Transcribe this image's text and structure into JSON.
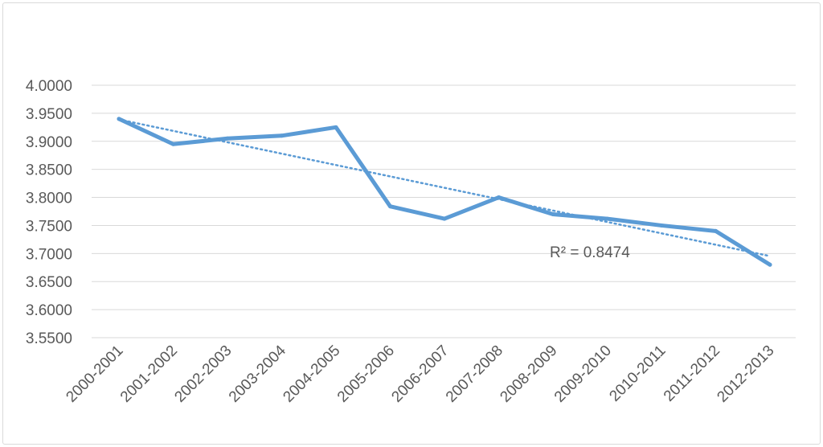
{
  "chart_data": {
    "type": "line",
    "title": "",
    "xlabel": "",
    "ylabel": "",
    "categories": [
      "2000-2001",
      "2001-2002",
      "2002-2003",
      "2003-2004",
      "2004-2005",
      "2005-2006",
      "2006-2007",
      "2007-2008",
      "2008-2009",
      "2009-2010",
      "2010-2011",
      "2011-2012",
      "2012-2013"
    ],
    "series": [
      {
        "values": [
          3.94,
          3.895,
          3.905,
          3.91,
          3.925,
          3.784,
          3.762,
          3.8,
          3.77,
          3.762,
          3.75,
          3.74,
          3.68
        ]
      }
    ],
    "ylim": [
      3.55,
      4.0
    ],
    "yticks": [
      "4.0000",
      "3.9500",
      "3.9000",
      "3.8500",
      "3.8000",
      "3.7500",
      "3.7000",
      "3.6500",
      "3.6000",
      "3.5500"
    ],
    "trendline": {
      "type": "linear",
      "label": "R² = 0.8474"
    },
    "grid": true,
    "legend": "none",
    "colors": {
      "series": "#5b9bd5",
      "grid": "#d9d9d9",
      "text": "#595959"
    }
  }
}
